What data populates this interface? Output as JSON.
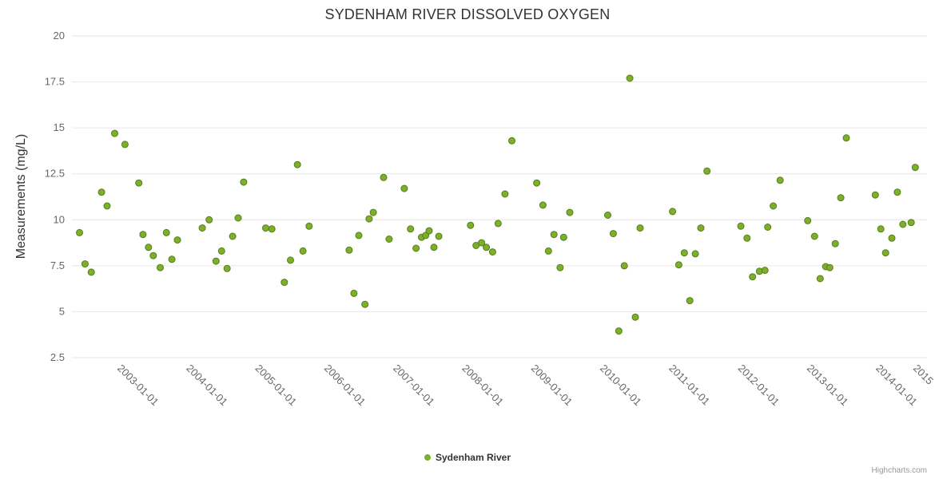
{
  "chart": {
    "credit": "Highcharts.com"
  },
  "chart_data": {
    "type": "scatter",
    "title": "SYDENHAM RIVER DISSOLVED OXYGEN",
    "xlabel": "",
    "ylabel": "Measurements (mg/L)",
    "ylim": [
      2.5,
      20
    ],
    "yticks": [
      2.5,
      5,
      7.5,
      10,
      12.5,
      15,
      17.5,
      20
    ],
    "xlim": [
      2002.35,
      2014.75
    ],
    "xticks": [
      {
        "year": 2003,
        "label": "2003-01-01"
      },
      {
        "year": 2004,
        "label": "2004-01-01"
      },
      {
        "year": 2005,
        "label": "2005-01-01"
      },
      {
        "year": 2006,
        "label": "2006-01-01"
      },
      {
        "year": 2007,
        "label": "2007-01-01"
      },
      {
        "year": 2008,
        "label": "2008-01-01"
      },
      {
        "year": 2009,
        "label": "2009-01-01"
      },
      {
        "year": 2010,
        "label": "2010-01-01"
      },
      {
        "year": 2011,
        "label": "2011-01-01"
      },
      {
        "year": 2012,
        "label": "2012-01-01"
      },
      {
        "year": 2013,
        "label": "2013-01-01"
      },
      {
        "year": 2014,
        "label": "2014-01-01"
      },
      {
        "year": 2015,
        "label": "2015"
      }
    ],
    "grid": "horizontal",
    "legend_position": "bottom-center",
    "colors": {
      "point": "#7cb02a",
      "point_border": "#567d1c",
      "grid": "#e6e6e6",
      "tick_label": "#666666",
      "title": "#333333"
    },
    "series": [
      {
        "name": "Sydenham River",
        "points": [
          [
            2002.46,
            9.3
          ],
          [
            2002.54,
            7.6
          ],
          [
            2002.63,
            7.15
          ],
          [
            2002.78,
            11.5
          ],
          [
            2002.86,
            10.75
          ],
          [
            2002.97,
            14.7
          ],
          [
            2003.12,
            14.1
          ],
          [
            2003.32,
            12.0
          ],
          [
            2003.38,
            9.2
          ],
          [
            2003.46,
            8.5
          ],
          [
            2003.53,
            8.05
          ],
          [
            2003.63,
            7.4
          ],
          [
            2003.72,
            9.3
          ],
          [
            2003.8,
            7.85
          ],
          [
            2003.88,
            8.9
          ],
          [
            2004.24,
            9.55
          ],
          [
            2004.34,
            10.0
          ],
          [
            2004.44,
            7.75
          ],
          [
            2004.52,
            8.3
          ],
          [
            2004.6,
            7.35
          ],
          [
            2004.68,
            9.1
          ],
          [
            2004.76,
            10.1
          ],
          [
            2004.84,
            12.05
          ],
          [
            2005.16,
            9.55
          ],
          [
            2005.25,
            9.5
          ],
          [
            2005.43,
            6.6
          ],
          [
            2005.52,
            7.8
          ],
          [
            2005.62,
            13.0
          ],
          [
            2005.7,
            8.3
          ],
          [
            2005.79,
            9.65
          ],
          [
            2006.37,
            8.35
          ],
          [
            2006.44,
            6.0
          ],
          [
            2006.51,
            9.15
          ],
          [
            2006.6,
            5.4
          ],
          [
            2006.66,
            10.05
          ],
          [
            2006.72,
            10.4
          ],
          [
            2006.87,
            12.3
          ],
          [
            2006.95,
            8.95
          ],
          [
            2007.17,
            11.7
          ],
          [
            2007.26,
            9.5
          ],
          [
            2007.34,
            8.45
          ],
          [
            2007.42,
            9.05
          ],
          [
            2007.48,
            9.15
          ],
          [
            2007.53,
            9.4
          ],
          [
            2007.6,
            8.5
          ],
          [
            2007.67,
            9.1
          ],
          [
            2008.13,
            9.7
          ],
          [
            2008.21,
            8.6
          ],
          [
            2008.29,
            8.75
          ],
          [
            2008.36,
            8.5
          ],
          [
            2008.45,
            8.25
          ],
          [
            2008.53,
            9.8
          ],
          [
            2008.63,
            11.4
          ],
          [
            2008.73,
            14.3
          ],
          [
            2009.09,
            12.0
          ],
          [
            2009.18,
            10.8
          ],
          [
            2009.26,
            8.3
          ],
          [
            2009.34,
            9.2
          ],
          [
            2009.43,
            7.4
          ],
          [
            2009.48,
            9.05
          ],
          [
            2009.57,
            10.4
          ],
          [
            2010.12,
            10.25
          ],
          [
            2010.2,
            9.25
          ],
          [
            2010.28,
            3.95
          ],
          [
            2010.36,
            7.5
          ],
          [
            2010.44,
            17.7
          ],
          [
            2010.52,
            4.7
          ],
          [
            2010.59,
            9.55
          ],
          [
            2011.06,
            10.45
          ],
          [
            2011.15,
            7.55
          ],
          [
            2011.23,
            8.2
          ],
          [
            2011.31,
            5.6
          ],
          [
            2011.39,
            8.15
          ],
          [
            2011.47,
            9.55
          ],
          [
            2011.56,
            12.65
          ],
          [
            2012.05,
            9.65
          ],
          [
            2012.14,
            9.0
          ],
          [
            2012.22,
            6.9
          ],
          [
            2012.32,
            7.2
          ],
          [
            2012.4,
            7.25
          ],
          [
            2012.44,
            9.6
          ],
          [
            2012.52,
            10.75
          ],
          [
            2012.62,
            12.15
          ],
          [
            2013.02,
            9.95
          ],
          [
            2013.12,
            9.1
          ],
          [
            2013.2,
            6.8
          ],
          [
            2013.28,
            7.45
          ],
          [
            2013.34,
            7.4
          ],
          [
            2013.42,
            8.7
          ],
          [
            2013.5,
            11.2
          ],
          [
            2013.58,
            14.45
          ],
          [
            2014.0,
            11.35
          ],
          [
            2014.08,
            9.5
          ],
          [
            2014.15,
            8.2
          ],
          [
            2014.24,
            9.0
          ],
          [
            2014.32,
            11.5
          ],
          [
            2014.4,
            9.75
          ],
          [
            2014.52,
            9.85
          ],
          [
            2014.58,
            12.85
          ]
        ]
      }
    ]
  }
}
